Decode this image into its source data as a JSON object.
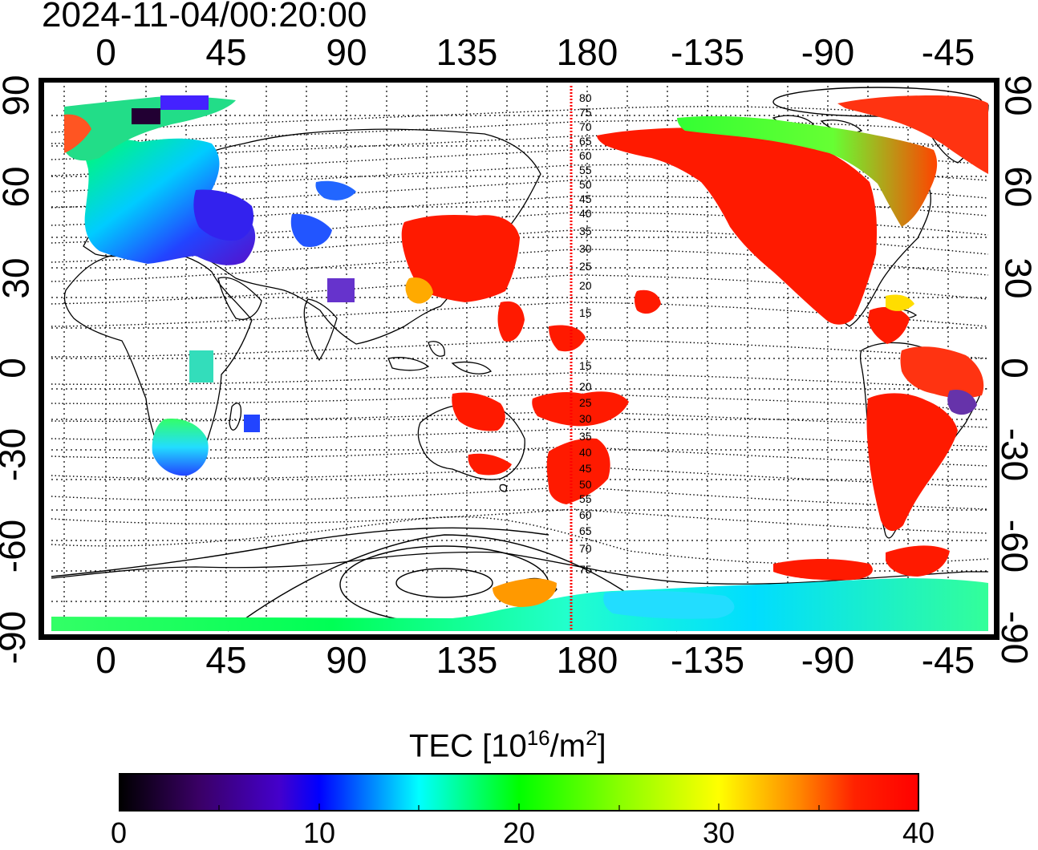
{
  "title": "2024-11-04/00:20:00",
  "x_ticks_top": [
    "0",
    "45",
    "90",
    "135",
    "180",
    "-135",
    "-90",
    "-45"
  ],
  "x_ticks_bottom": [
    "0",
    "45",
    "90",
    "135",
    "180",
    "-135",
    "-90",
    "-45"
  ],
  "y_ticks_left": [
    "90",
    "60",
    "30",
    "0",
    "-30",
    "-60",
    "-90"
  ],
  "y_ticks_right": [
    "90",
    "60",
    "30",
    "0",
    "-30",
    "-60",
    "-90"
  ],
  "magnetic_latitude_labels": [
    "80",
    "75",
    "70",
    "65",
    "60",
    "55",
    "50",
    "45",
    "40",
    "35",
    "30",
    "25",
    "20",
    "15",
    "15",
    "20",
    "25",
    "30",
    "35",
    "40",
    "45",
    "50",
    "55",
    "60",
    "65",
    "70",
    "75"
  ],
  "colorbar": {
    "title_main": "TEC  [10",
    "title_exp": "16",
    "title_mid": "/m",
    "title_exp2": "2",
    "title_end": "]",
    "ticks": [
      "0",
      "10",
      "20",
      "30",
      "40"
    ],
    "min": 0,
    "max": 40
  },
  "colors": {
    "high_tec": "#ff1a00",
    "frame": "#000000",
    "terminator": "#ff0000"
  }
}
